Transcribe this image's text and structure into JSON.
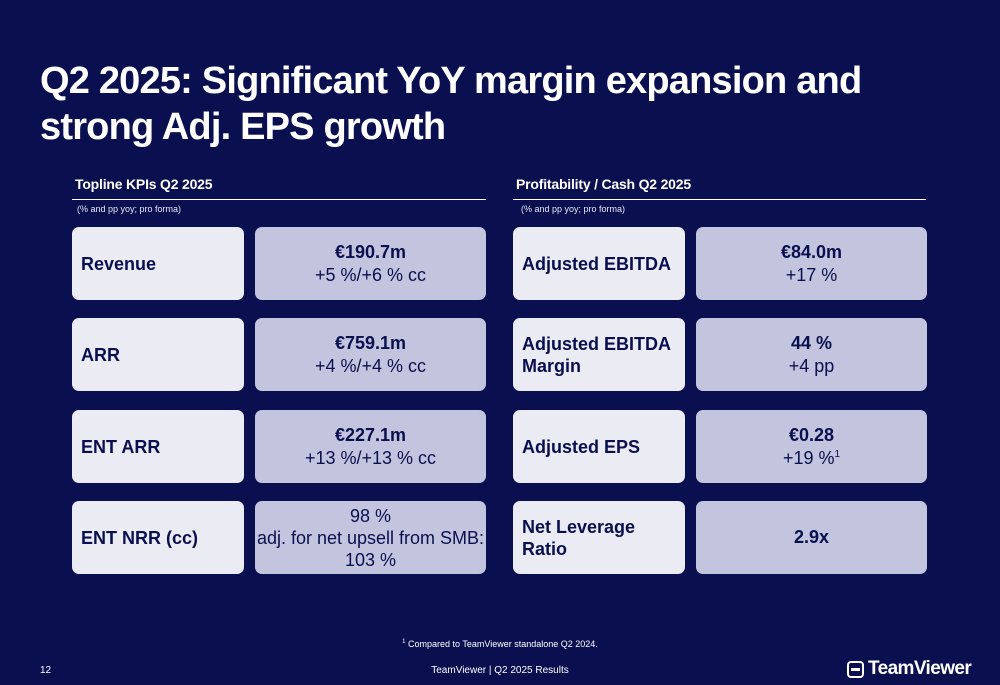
{
  "title": "Q2 2025: Significant YoY margin expansion and strong Adj. EPS growth",
  "left_section": {
    "heading": "Topline KPIs Q2 2025",
    "note": "(% and pp yoy; pro forma)",
    "rows": [
      {
        "label": "Revenue",
        "main": "€190.7m",
        "sub": "+5 %/+6  % cc"
      },
      {
        "label": "ARR",
        "main": "€759.1m",
        "sub": "+4 %/+4 % cc"
      },
      {
        "label": "ENT ARR",
        "main": "€227.1m",
        "sub": "+13 %/+13 % cc"
      },
      {
        "label": "ENT NRR (cc)",
        "line1": "98 %",
        "line2": "adj. for net upsell from SMB:",
        "line3": "103 %"
      }
    ]
  },
  "right_section": {
    "heading": "Profitability / Cash Q2 2025",
    "note": "(% and pp yoy; pro forma)",
    "rows": [
      {
        "label": "Adjusted EBITDA",
        "main": "€84.0m",
        "sub": "+17 %"
      },
      {
        "label_line1": "Adjusted EBITDA",
        "label_line2": "Margin",
        "main": "44 %",
        "sub": "+4 pp"
      },
      {
        "label": "Adjusted EPS",
        "main": "€0.28",
        "sub": "+19 %",
        "footnote_mark": "1"
      },
      {
        "label": "Net Leverage Ratio",
        "main": "2.9x"
      }
    ]
  },
  "footnote": {
    "mark": "1",
    "text": "Compared to TeamViewer standalone Q2 2024."
  },
  "footer": {
    "page_number": "12",
    "center_text": "TeamViewer | Q2 2025 Results",
    "logo_text": "TeamViewer",
    "logo_icon": "teamviewer-logo-icon"
  },
  "colors": {
    "background": "#0a0f4f",
    "label_card": "#ebebf3",
    "value_card": "#c3c5de",
    "text_dark": "#0a0f4f"
  }
}
